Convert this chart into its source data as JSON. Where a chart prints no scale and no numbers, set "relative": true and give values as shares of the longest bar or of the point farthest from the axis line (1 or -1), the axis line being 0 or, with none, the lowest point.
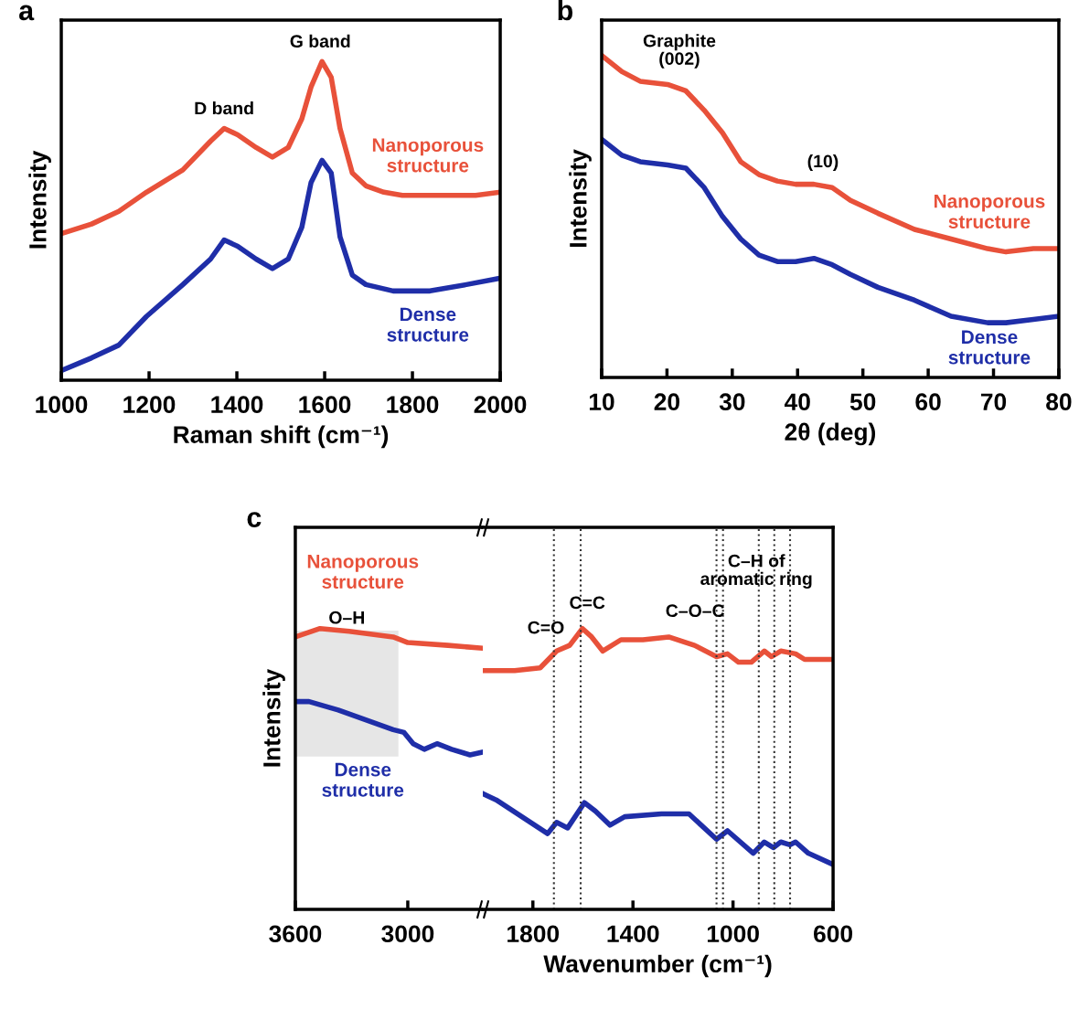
{
  "chart_data": [
    {
      "type": "line",
      "title": "a",
      "xlabel": "Raman shift (cm⁻¹)",
      "ylabel": "Intensity",
      "relative": true,
      "xlim": [
        1000,
        2000
      ],
      "xticks": [
        1000,
        1200,
        1400,
        1600,
        1800,
        2000
      ],
      "series": [
        {
          "name": "Nanoporous\nstructure",
          "color": "#e8513a",
          "x": [
            1000,
            1069,
            1131,
            1194,
            1277,
            1340,
            1371,
            1402,
            1444,
            1481,
            1517,
            1548,
            1569,
            1594,
            1615,
            1635,
            1663,
            1694,
            1735,
            1777,
            1860,
            1944,
            2000
          ],
          "values": [
            0.46,
            0.49,
            0.53,
            0.59,
            0.66,
            0.75,
            0.79,
            0.77,
            0.73,
            0.7,
            0.73,
            0.82,
            0.92,
            1.0,
            0.95,
            0.79,
            0.65,
            0.61,
            0.59,
            0.58,
            0.58,
            0.58,
            0.59
          ]
        },
        {
          "name": "Dense\nstructure",
          "color": "#1f2ea8",
          "x": [
            1000,
            1069,
            1131,
            1194,
            1277,
            1340,
            1371,
            1402,
            1444,
            1481,
            1517,
            1548,
            1569,
            1594,
            1615,
            1635,
            1663,
            1694,
            1756,
            1840,
            1923,
            2000
          ],
          "values": [
            0.03,
            0.07,
            0.11,
            0.2,
            0.3,
            0.38,
            0.44,
            0.42,
            0.38,
            0.35,
            0.38,
            0.48,
            0.62,
            0.69,
            0.65,
            0.45,
            0.33,
            0.3,
            0.28,
            0.28,
            0.3,
            0.32
          ]
        }
      ],
      "annotations": [
        "D band",
        "G band"
      ]
    },
    {
      "type": "line",
      "title": "b",
      "xlabel": "2θ (deg)",
      "ylabel": "Intensity",
      "relative": true,
      "xlim": [
        10,
        80
      ],
      "xticks": [
        10,
        20,
        30,
        40,
        50,
        60,
        70,
        80
      ],
      "series": [
        {
          "name": "Nanoporous\nstructure",
          "color": "#e8513a",
          "x": [
            10,
            13.1,
            15.9,
            20.1,
            22.9,
            25.7,
            28.5,
            31.3,
            34.1,
            36.9,
            39.7,
            42.5,
            45.3,
            48.1,
            52.3,
            57.9,
            63.5,
            69.1,
            71.9,
            76.1,
            80
          ],
          "values": [
            1.0,
            0.95,
            0.92,
            0.91,
            0.89,
            0.83,
            0.76,
            0.67,
            0.63,
            0.61,
            0.6,
            0.6,
            0.59,
            0.55,
            0.51,
            0.46,
            0.43,
            0.4,
            0.39,
            0.4,
            0.4
          ]
        },
        {
          "name": "Dense\nstructure",
          "color": "#1f2ea8",
          "x": [
            10,
            13.1,
            15.9,
            20.1,
            22.9,
            25.7,
            28.5,
            31.3,
            34.1,
            36.9,
            39.7,
            42.5,
            45.3,
            48.1,
            52.3,
            57.9,
            63.5,
            69.1,
            71.9,
            76.1,
            80
          ],
          "values": [
            0.74,
            0.69,
            0.67,
            0.66,
            0.65,
            0.59,
            0.5,
            0.43,
            0.38,
            0.36,
            0.36,
            0.37,
            0.35,
            0.32,
            0.28,
            0.24,
            0.19,
            0.17,
            0.17,
            0.18,
            0.19
          ]
        }
      ],
      "annotations": [
        "Graphite\n(002)",
        "(10)"
      ]
    },
    {
      "type": "line",
      "title": "c",
      "ylabel": "Intensity",
      "relative": true,
      "xlim": [
        3600,
        2600
      ],
      "xticks": [
        3600,
        3000
      ],
      "series": [
        {
          "name": "Nanoporous\nstructure",
          "color": "#e8513a",
          "x": [
            3600,
            3468,
            3312,
            3078,
            3000,
            2785,
            2600
          ],
          "values": [
            0.97,
            1.0,
            0.99,
            0.97,
            0.95,
            0.94,
            0.93
          ]
        },
        {
          "name": "Dense\nstructure",
          "color": "#1f2ea8",
          "x": [
            3600,
            3527,
            3371,
            3078,
            3020,
            2971,
            2912,
            2844,
            2766,
            2668,
            2600
          ],
          "values": [
            0.74,
            0.74,
            0.71,
            0.64,
            0.63,
            0.59,
            0.57,
            0.59,
            0.57,
            0.55,
            0.56
          ]
        }
      ],
      "bands": [
        {
          "axis": "x",
          "from": 3600,
          "to": 3050,
          "label": "O–H",
          "color": "#e6e6e6"
        }
      ]
    },
    {
      "type": "line",
      "xlabel": "Wavenumber (cm⁻¹)",
      "relative": true,
      "xlim": [
        2000,
        600
      ],
      "xticks": [
        1800,
        1400,
        1000,
        600
      ],
      "series": [
        {
          "color": "#e8513a",
          "x": [
            1990,
            1873,
            1771,
            1705,
            1653,
            1602,
            1565,
            1521,
            1448,
            1360,
            1257,
            1154,
            1066,
            1022,
            978,
            927,
            875,
            846,
            809,
            750,
            714,
            600
          ],
          "values": [
            0.85,
            0.85,
            0.86,
            0.92,
            0.94,
            1.0,
            0.97,
            0.92,
            0.96,
            0.96,
            0.97,
            0.94,
            0.9,
            0.91,
            0.88,
            0.88,
            0.92,
            0.9,
            0.92,
            0.91,
            0.89,
            0.89
          ]
        },
        {
          "color": "#1f2ea8",
          "x": [
            1995,
            1947,
            1741,
            1705,
            1661,
            1594,
            1550,
            1492,
            1433,
            1286,
            1176,
            1066,
            1022,
            919,
            875,
            839,
            809,
            772,
            750,
            699,
            600
          ],
          "values": [
            0.41,
            0.39,
            0.27,
            0.31,
            0.29,
            0.38,
            0.35,
            0.3,
            0.33,
            0.34,
            0.34,
            0.25,
            0.28,
            0.2,
            0.24,
            0.22,
            0.24,
            0.23,
            0.24,
            0.2,
            0.16
          ]
        }
      ],
      "ref_lines": [
        {
          "axis": "x",
          "value": 1716,
          "color": "#333333",
          "line_style": "dotted"
        },
        {
          "axis": "x",
          "value": 1609,
          "color": "#333333",
          "line_style": "dotted"
        },
        {
          "axis": "x",
          "value": 1066,
          "color": "#333333",
          "line_style": "dotted"
        },
        {
          "axis": "x",
          "value": 1040,
          "color": "#333333",
          "line_style": "dotted"
        },
        {
          "axis": "x",
          "value": 897,
          "color": "#333333",
          "line_style": "dotted"
        },
        {
          "axis": "x",
          "value": 835,
          "color": "#333333",
          "line_style": "dotted"
        },
        {
          "axis": "x",
          "value": 772,
          "color": "#333333",
          "line_style": "dotted"
        }
      ],
      "annotations": [
        "C=O",
        "C=C",
        "C–O–C",
        "C–H of\naromatic ring"
      ]
    }
  ]
}
